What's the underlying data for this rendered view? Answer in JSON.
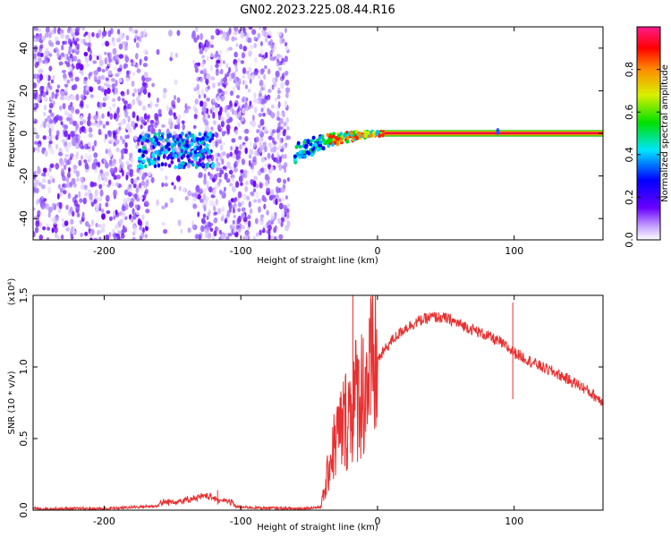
{
  "title": "GN02.2023.225.08.44.R16",
  "chart_data": [
    {
      "type": "heatmap",
      "xlabel": "Height of straight line (km)",
      "ylabel": "Frequency (Hz)",
      "xlim": [
        -252,
        165
      ],
      "ylim": [
        -50,
        50
      ],
      "x_ticks": [
        -200,
        -100,
        0,
        100
      ],
      "y_ticks": [
        -40,
        -20,
        0,
        20,
        40
      ],
      "colorbar": {
        "label": "Normalized spectral amplitude",
        "range": [
          0,
          1
        ],
        "ticks": [
          "0.0",
          "0.2",
          "0.4",
          "0.6",
          "0.8"
        ],
        "colormap": "rainbow (white → violet → blue → cyan → green → yellow → orange → red → pink)"
      },
      "description_points": {
        "noise_region_x": [
          -252,
          -65
        ],
        "cluster_x": [
          -175,
          -120
        ],
        "cluster_freq_hz": -8,
        "chirp_start_x": -62,
        "chirp_start_freq_hz": -10,
        "steady_tone_start_x": 5,
        "steady_tone_freq_hz": 0
      }
    },
    {
      "type": "line",
      "xlabel": "Height of straight line (km)",
      "ylabel": "SNR (10 * v/v)",
      "y_multiplier": "(x10⁴)",
      "xlim": [
        -252,
        165
      ],
      "ylim": [
        0,
        1.5
      ],
      "x_ticks": [
        -200,
        -100,
        0,
        100
      ],
      "y_ticks": [
        "0.0",
        "0.5",
        "1.0",
        "1.5"
      ],
      "color": "#e83030",
      "series_envelope": {
        "x": [
          -252,
          -200,
          -160,
          -140,
          -125,
          -115,
          -100,
          -60,
          -42,
          -38,
          -35,
          -30,
          -25,
          -20,
          -15,
          -10,
          -5,
          0,
          10,
          20,
          30,
          40,
          50,
          60,
          70,
          80,
          90,
          100,
          110,
          120,
          130,
          140,
          150,
          160,
          165
        ],
        "y": [
          0.01,
          0.01,
          0.03,
          0.05,
          0.08,
          0.05,
          0.02,
          0.01,
          0.02,
          0.15,
          0.35,
          0.5,
          0.6,
          0.7,
          0.8,
          0.85,
          0.95,
          1.05,
          1.18,
          1.27,
          1.32,
          1.35,
          1.34,
          1.3,
          1.26,
          1.22,
          1.17,
          1.1,
          1.05,
          1.0,
          0.96,
          0.91,
          0.86,
          0.79,
          0.76
        ]
      },
      "spikes": [
        {
          "x": -117,
          "y": 0.14
        },
        {
          "x": -18,
          "y": 1.5
        },
        {
          "x": -5,
          "y": 1.48
        },
        {
          "x": 99,
          "y": 1.45
        }
      ]
    }
  ]
}
